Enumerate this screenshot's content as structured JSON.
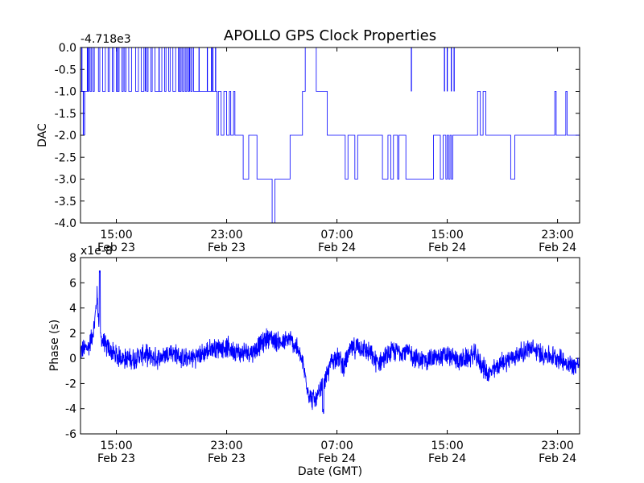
{
  "title": "APOLLO GPS Clock Properties",
  "chart_data": [
    {
      "type": "line",
      "ylabel": "DAC",
      "offset_text": "-4.718e3",
      "ylim": [
        -4.0,
        0.0
      ],
      "yticks": [
        -4.0,
        -3.5,
        -3.0,
        -2.5,
        -2.0,
        -1.5,
        -1.0,
        -0.5,
        0.0
      ],
      "ytick_labels": [
        "-4.0",
        "-3.5",
        "-3.0",
        "-2.5",
        "-2.0",
        "-1.5",
        "-1.0",
        "-0.5",
        "0.0"
      ],
      "xlim_hours": [
        12.4,
        48.6
      ],
      "xticks_hours": [
        15,
        23,
        31,
        39,
        47
      ],
      "xtick_labels": [
        [
          "15:00",
          "Feb 23"
        ],
        [
          "23:00",
          "Feb 23"
        ],
        [
          "07:00",
          "Feb 24"
        ],
        [
          "15:00",
          "Feb 24"
        ],
        [
          "23:00",
          "Feb 24"
        ]
      ],
      "color": "#0000ff",
      "x_hours": [
        12.4,
        13.0,
        13.1,
        13.2,
        13.3,
        13.4,
        13.7,
        13.8,
        14.0,
        14.2,
        14.4,
        14.5,
        14.7,
        14.8,
        15.0,
        15.2,
        15.4,
        15.5,
        15.6,
        15.7,
        15.9,
        16.1,
        16.4,
        16.6,
        16.8,
        17.0,
        17.2,
        17.3,
        17.5,
        17.6,
        17.8,
        18.3,
        18.5,
        18.6,
        18.8,
        18.9,
        19.1,
        19.3,
        19.5,
        19.7,
        19.8,
        19.9,
        20.0,
        20.1,
        20.2,
        20.3,
        20.4,
        20.5,
        20.6,
        20.7,
        22.3,
        22.4,
        22.6,
        22.8,
        23.0,
        23.2,
        23.3,
        23.5,
        23.6,
        23.8,
        24.2,
        24.4,
        24.6,
        25.2,
        25.5,
        26.3,
        26.5,
        27.4,
        27.6,
        27.8,
        28.5,
        28.7,
        28.9,
        29.5,
        29.7,
        30.3,
        30.5,
        31.6,
        31.8,
        32.3,
        32.5,
        34.1,
        34.3,
        34.6,
        34.7,
        34.9,
        35.1,
        35.4,
        35.5,
        35.9,
        36.0,
        37.8,
        38.0,
        38.5,
        38.7,
        38.9,
        39.0,
        39.1,
        39.2,
        39.3,
        39.4,
        39.5,
        39.6,
        40.2,
        40.4,
        41.2,
        41.4,
        41.6,
        41.8,
        43.5,
        43.6,
        43.8,
        43.9,
        44.2,
        44.4,
        45.0,
        45.2,
        45.4,
        46.8,
        46.9,
        47.0,
        47.1,
        47.6,
        47.7,
        48.6
      ],
      "y": [
        -1.0,
        -0.0,
        -1.0,
        -0.0,
        -1.0,
        -0.0,
        -1.0,
        -0.0,
        -1.0,
        -0.0,
        -1.0,
        -0.0,
        -1.0,
        -0.0,
        -1.0,
        -0.0,
        -1.0,
        -0.0,
        -1.0,
        -0.0,
        -1.0,
        -0.0,
        -1.0,
        -0.0,
        -1.0,
        -0.0,
        -1.0,
        -0.0,
        -1.0,
        -0.0,
        -1.0,
        -0.0,
        -1.0,
        -0.0,
        -1.0,
        -0.0,
        -1.0,
        -0.0,
        -1.0,
        -0.0,
        -1.0,
        -0.0,
        -1.0,
        -0.0,
        -1.0,
        -0.0,
        -1.0,
        -0.0,
        -1.0,
        -1.0,
        -2.0,
        -1.0,
        -2.0,
        -1.0,
        -2.0,
        -1.0,
        -2.0,
        -1.0,
        -2.0,
        -2.0,
        -3.0,
        -3.0,
        -2.0,
        -3.0,
        -3.0,
        -4.0,
        -3.0,
        -3.0,
        -2.0,
        -2.0,
        -1.0,
        0.0,
        0.0,
        -1.0,
        -1.0,
        -2.0,
        -2.0,
        -3.0,
        -2.0,
        -3.0,
        -2.0,
        -2.0,
        -3.0,
        -3.0,
        -2.0,
        -3.0,
        -2.0,
        -3.0,
        -2.0,
        -2.0,
        -3.0,
        -3.0,
        -2.0,
        -3.0,
        -2.0,
        -3.0,
        -2.0,
        -3.0,
        -2.0,
        -3.0,
        -2.0,
        -2.0,
        -2.0,
        -2.0,
        -2.0,
        -1.0,
        -2.0,
        -1.0,
        -2.0,
        -2.0,
        -3.0,
        -3.0,
        -2.0,
        -2.0,
        -2.0,
        -2.0,
        -2.0,
        -2.0,
        -1.0,
        -2.0,
        -2.0,
        -2.0,
        -1.0,
        -2.0,
        -2.0
      ],
      "extra_spikes_hours": [
        12.5,
        12.9,
        13.0,
        15.1,
        17.1,
        18.1,
        19.6,
        20.3,
        21.0,
        21.6,
        21.9,
        22.0,
        22.2,
        36.4,
        38.8,
        39.0,
        39.3,
        39.5
      ],
      "dips_to_minus2_hours": [
        12.6,
        12.7
      ]
    },
    {
      "type": "line",
      "ylabel": "Phase (s)",
      "xlabel": "Date (GMT)",
      "offset_text": "x1e-8",
      "ylim": [
        -6,
        8
      ],
      "yticks": [
        -6,
        -4,
        -2,
        0,
        2,
        4,
        6,
        8
      ],
      "ytick_labels": [
        "-6",
        "-4",
        "-2",
        "0",
        "2",
        "4",
        "6",
        "8"
      ],
      "xlim_hours": [
        12.4,
        48.6
      ],
      "xticks_hours": [
        15,
        23,
        31,
        39,
        47
      ],
      "xtick_labels": [
        [
          "15:00",
          "Feb 23"
        ],
        [
          "23:00",
          "Feb 23"
        ],
        [
          "07:00",
          "Feb 24"
        ],
        [
          "15:00",
          "Feb 24"
        ],
        [
          "23:00",
          "Feb 24"
        ]
      ],
      "color": "#0000ff",
      "trend_hours": [
        12.4,
        13.0,
        13.4,
        13.6,
        13.8,
        14.2,
        15.0,
        16.0,
        17.0,
        18.0,
        19.0,
        20.0,
        21.0,
        22.0,
        23.0,
        24.0,
        25.0,
        26.0,
        27.0,
        27.6,
        28.0,
        28.5,
        29.0,
        29.5,
        30.0,
        30.3,
        30.6,
        31.0,
        31.5,
        32.0,
        32.5,
        33.0,
        34.0,
        35.0,
        36.0,
        37.0,
        38.0,
        39.0,
        40.0,
        41.0,
        42.0,
        43.0,
        44.0,
        45.0,
        46.0,
        47.0,
        48.0,
        48.6
      ],
      "trend": [
        0.6,
        0.9,
        2.5,
        5.0,
        1.8,
        1.0,
        0.2,
        -0.1,
        0.3,
        0.0,
        0.5,
        -0.1,
        0.2,
        0.8,
        0.9,
        0.4,
        0.6,
        1.7,
        1.2,
        1.5,
        1.0,
        -0.3,
        -3.0,
        -3.4,
        -2.0,
        -1.4,
        -0.2,
        0.2,
        -0.6,
        0.7,
        0.9,
        0.8,
        -0.4,
        0.5,
        0.6,
        -0.2,
        0.0,
        0.2,
        -0.2,
        0.3,
        -1.3,
        -0.3,
        0.2,
        0.8,
        0.3,
        0.1,
        -0.6,
        -0.4
      ],
      "peak": [
        13.8,
        7.1
      ],
      "min": [
        30.0,
        -4.4
      ],
      "noise_amplitude": 0.7
    }
  ]
}
